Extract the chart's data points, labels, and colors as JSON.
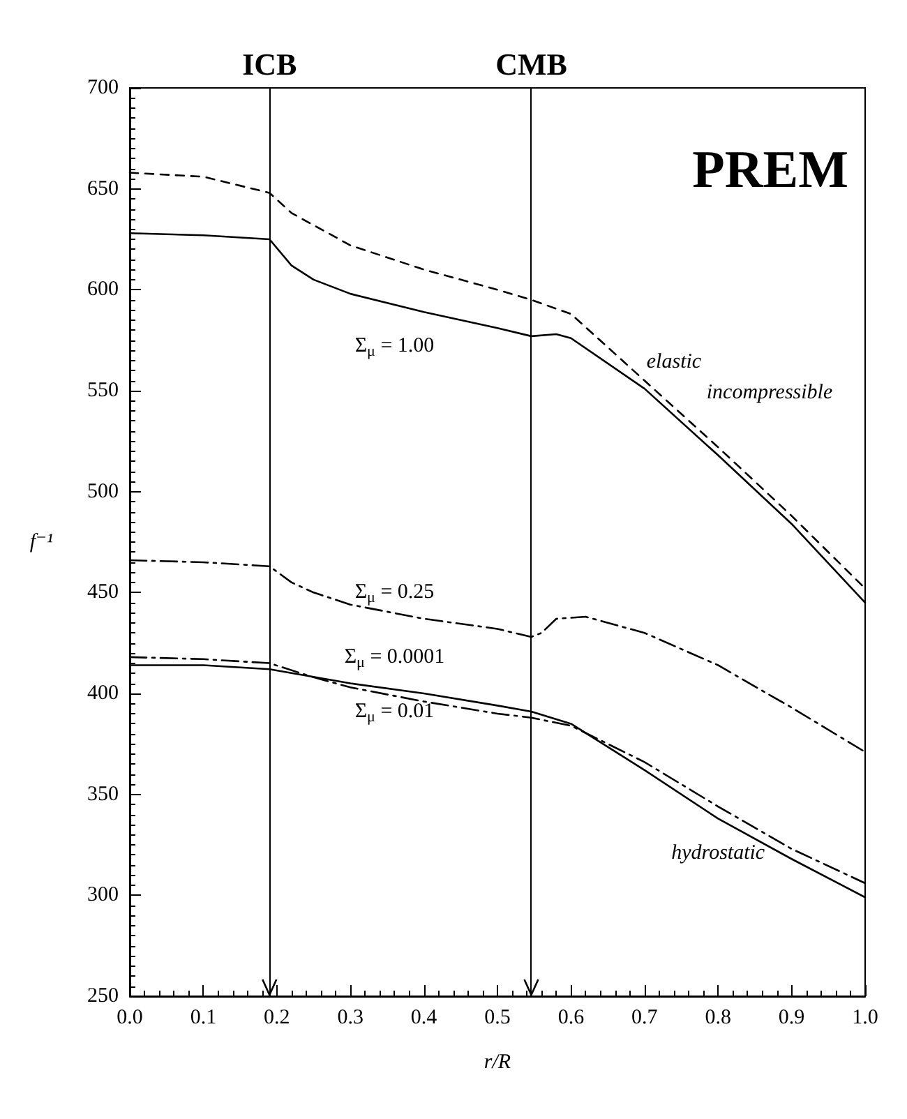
{
  "chart_data": {
    "type": "line",
    "title": "PREM",
    "xlabel": "r/R",
    "ylabel": "f⁻¹",
    "xlim": [
      0,
      1
    ],
    "ylim": [
      250,
      700
    ],
    "xticks": [
      {
        "value": 0,
        "label": "0.0"
      },
      0.1,
      0.2,
      0.3,
      0.4,
      0.5,
      0.6,
      0.7,
      0.8,
      0.9,
      {
        "value": 1,
        "label": "1.0"
      }
    ],
    "yticks": [
      250,
      300,
      350,
      400,
      450,
      500,
      550,
      600,
      650,
      700
    ],
    "grid": false,
    "marker": "none",
    "series": [
      {
        "color": "#000000",
        "line_style": "dashed",
        "x": [
          0,
          0.1,
          0.19,
          0.22,
          0.25,
          0.3,
          0.4,
          0.5,
          0.546,
          0.6,
          0.7,
          0.8,
          0.9,
          1.0
        ],
        "values": [
          658,
          656,
          648,
          638,
          632,
          622,
          610,
          600,
          595,
          588,
          555,
          522,
          488,
          452
        ]
      },
      {
        "color": "#000000",
        "line_style": "solid",
        "x": [
          0,
          0.1,
          0.19,
          0.22,
          0.25,
          0.3,
          0.4,
          0.5,
          0.546,
          0.58,
          0.6,
          0.7,
          0.8,
          0.9,
          1.0
        ],
        "values": [
          628,
          627,
          625,
          612,
          605,
          598,
          589,
          581,
          577,
          578,
          576,
          551,
          518,
          484,
          445
        ]
      },
      {
        "color": "#000000",
        "line_style": "dashdot",
        "x": [
          0,
          0.1,
          0.19,
          0.22,
          0.25,
          0.3,
          0.4,
          0.5,
          0.546,
          0.56,
          0.58,
          0.62,
          0.7,
          0.8,
          0.9,
          1.0
        ],
        "values": [
          466,
          465,
          463,
          455,
          450,
          444,
          437,
          432,
          428,
          430,
          437,
          438,
          430,
          414,
          393,
          371
        ]
      },
      {
        "color": "#000000",
        "line_style": "solid",
        "x": [
          0,
          0.1,
          0.19,
          0.3,
          0.4,
          0.5,
          0.546,
          0.6,
          0.7,
          0.8,
          0.9,
          1.0
        ],
        "values": [
          414,
          414,
          412,
          405,
          400,
          394,
          391,
          385,
          362,
          338,
          318,
          299
        ]
      },
      {
        "color": "#000000",
        "line_style": "dashdot",
        "x": [
          0,
          0.1,
          0.19,
          0.25,
          0.3,
          0.4,
          0.5,
          0.546,
          0.6,
          0.7,
          0.8,
          0.9,
          1.0
        ],
        "values": [
          418,
          417,
          415,
          408,
          403,
          396,
          390,
          388,
          384,
          366,
          344,
          323,
          306
        ]
      }
    ],
    "ref_lines": [
      {
        "axis": "x",
        "value": 0.19,
        "label": "ICB",
        "color": "#000000"
      },
      {
        "axis": "x",
        "value": 0.546,
        "label": "CMB",
        "color": "#000000"
      }
    ],
    "annotations": [
      "Σ$_{μ}$ = 1.00",
      "Σ$_{μ}$ = 0.25",
      "Σ$_{μ}$ = 0.0001",
      "Σ$_{μ}$ = 0.01",
      "elastic",
      "incompressible",
      "hydrostatic"
    ]
  }
}
